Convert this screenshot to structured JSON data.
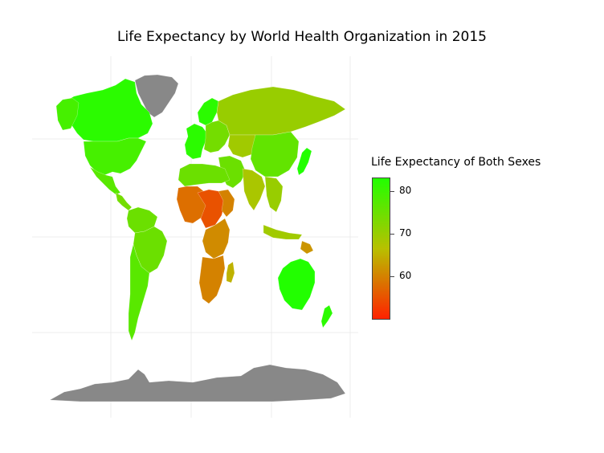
{
  "title": "Life Expectancy by World Health Organization in 2015",
  "legend": {
    "title": "Life Expectancy of Both Sexes",
    "ticks": [
      {
        "label": "80",
        "value": 80
      },
      {
        "label": "70",
        "value": 70
      },
      {
        "label": "60",
        "value": 60
      }
    ],
    "min_value": 50,
    "max_value": 83,
    "color_low": "#ff2200",
    "color_mid": "#b8c000",
    "color_high": "#22ff00",
    "no_data_color": "#888888"
  },
  "regions": [
    {
      "name": "Greenland",
      "value": null
    },
    {
      "name": "Antarctica",
      "value": null
    },
    {
      "name": "Canada",
      "value": 82
    },
    {
      "name": "Alaska",
      "value": 79
    },
    {
      "name": "United States",
      "value": 79
    },
    {
      "name": "Mexico",
      "value": 77
    },
    {
      "name": "Central America",
      "value": 74
    },
    {
      "name": "South America north",
      "value": 75
    },
    {
      "name": "Brazil",
      "value": 75
    },
    {
      "name": "Southern Cone",
      "value": 77
    },
    {
      "name": "Western Europe",
      "value": 82
    },
    {
      "name": "Scandinavia",
      "value": 82
    },
    {
      "name": "Eastern Europe",
      "value": 74
    },
    {
      "name": "Russia",
      "value": 70
    },
    {
      "name": "Central Asia",
      "value": 69
    },
    {
      "name": "China",
      "value": 76
    },
    {
      "name": "Japan",
      "value": 83
    },
    {
      "name": "Middle East",
      "value": 75
    },
    {
      "name": "South Asia",
      "value": 68
    },
    {
      "name": "Southeast Asia",
      "value": 70
    },
    {
      "name": "Indonesia",
      "value": 69
    },
    {
      "name": "Papua New Guinea",
      "value": 62
    },
    {
      "name": "Australia",
      "value": 83
    },
    {
      "name": "New Zealand",
      "value": 82
    },
    {
      "name": "North Africa",
      "value": 75
    },
    {
      "name": "West Africa",
      "value": 58
    },
    {
      "name": "Central Africa",
      "value": 55
    },
    {
      "name": "Horn of Africa",
      "value": 60
    },
    {
      "name": "East Africa",
      "value": 61
    },
    {
      "name": "Southern Africa",
      "value": 60
    },
    {
      "name": "Madagascar",
      "value": 65
    }
  ]
}
